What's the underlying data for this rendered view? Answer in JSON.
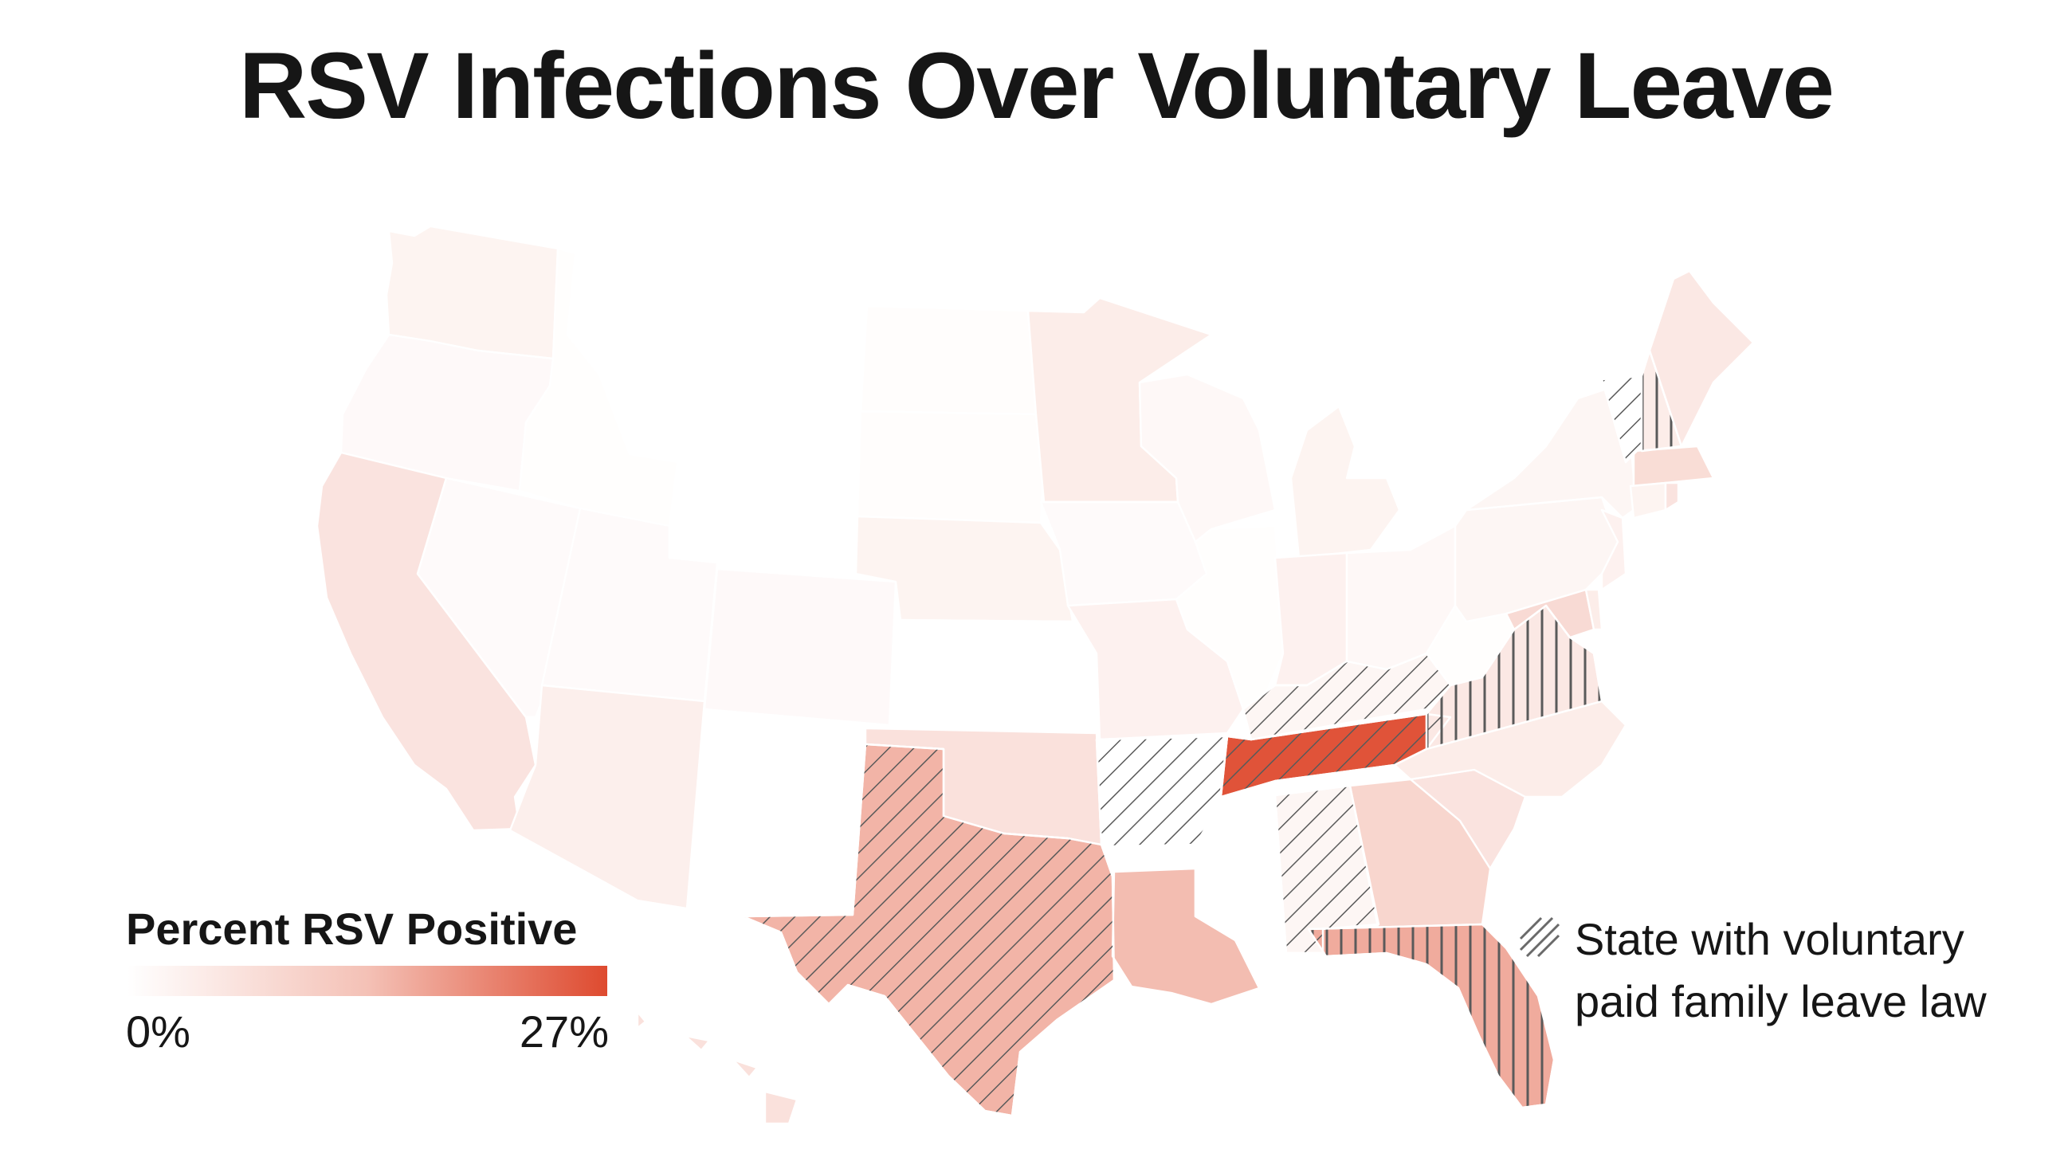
{
  "title": "RSV Infections Over Voluntary Leave",
  "legend": {
    "title": "Percent RSV Positive",
    "min_label": "0%",
    "max_label": "27%",
    "min_value": 0,
    "max_value": 27,
    "color_low": "#ffffff",
    "color_high": "#de4a2f"
  },
  "hatch_legend": {
    "line1": "State with voluntary",
    "line2": "paid family leave law"
  },
  "colors": {
    "hatch_stroke": "#5a5a5a",
    "border": "#ffffff"
  },
  "states": [
    {
      "id": "WA",
      "pct": 2.5,
      "voluntary_leave": false
    },
    {
      "id": "OR",
      "pct": 1.2,
      "voluntary_leave": false
    },
    {
      "id": "CA",
      "pct": 6.0,
      "voluntary_leave": false
    },
    {
      "id": "NV",
      "pct": 1.0,
      "voluntary_leave": false
    },
    {
      "id": "ID",
      "pct": 0.3,
      "voluntary_leave": false
    },
    {
      "id": "MT",
      "pct": 0.0,
      "voluntary_leave": false
    },
    {
      "id": "WY",
      "pct": 0.0,
      "voluntary_leave": false
    },
    {
      "id": "UT",
      "pct": 1.0,
      "voluntary_leave": false
    },
    {
      "id": "AZ",
      "pct": 3.5,
      "voluntary_leave": false
    },
    {
      "id": "CO",
      "pct": 1.2,
      "voluntary_leave": false
    },
    {
      "id": "NM",
      "pct": 0.0,
      "voluntary_leave": false
    },
    {
      "id": "ND",
      "pct": 0.5,
      "voluntary_leave": false
    },
    {
      "id": "SD",
      "pct": 0.5,
      "voluntary_leave": false
    },
    {
      "id": "NE",
      "pct": 2.5,
      "voluntary_leave": false
    },
    {
      "id": "KS",
      "pct": 0.0,
      "voluntary_leave": false
    },
    {
      "id": "OK",
      "pct": 6.5,
      "voluntary_leave": false
    },
    {
      "id": "TX",
      "pct": 15.0,
      "voluntary_leave": true
    },
    {
      "id": "MN",
      "pct": 4.0,
      "voluntary_leave": false
    },
    {
      "id": "IA",
      "pct": 1.0,
      "voluntary_leave": false
    },
    {
      "id": "MO",
      "pct": 3.0,
      "voluntary_leave": false
    },
    {
      "id": "AR",
      "pct": 0.0,
      "voluntary_leave": true
    },
    {
      "id": "LA",
      "pct": 14.0,
      "voluntary_leave": false
    },
    {
      "id": "WI",
      "pct": 1.5,
      "voluntary_leave": false
    },
    {
      "id": "IL",
      "pct": 0.3,
      "voluntary_leave": false
    },
    {
      "id": "MI",
      "pct": 2.5,
      "voluntary_leave": false
    },
    {
      "id": "IN",
      "pct": 3.0,
      "voluntary_leave": false
    },
    {
      "id": "OH",
      "pct": 1.5,
      "voluntary_leave": false
    },
    {
      "id": "KY",
      "pct": 2.0,
      "voluntary_leave": true
    },
    {
      "id": "TN",
      "pct": 26.0,
      "voluntary_leave": true
    },
    {
      "id": "MS",
      "pct": 0.0,
      "voluntary_leave": false
    },
    {
      "id": "AL",
      "pct": 2.0,
      "voluntary_leave": true
    },
    {
      "id": "GA",
      "pct": 9.0,
      "voluntary_leave": false
    },
    {
      "id": "FL",
      "pct": 16.0,
      "voluntary_leave": true
    },
    {
      "id": "SC",
      "pct": 6.0,
      "voluntary_leave": false
    },
    {
      "id": "NC",
      "pct": 4.0,
      "voluntary_leave": false
    },
    {
      "id": "VA",
      "pct": 5.0,
      "voluntary_leave": true
    },
    {
      "id": "WV",
      "pct": 0.3,
      "voluntary_leave": false
    },
    {
      "id": "PA",
      "pct": 2.0,
      "voluntary_leave": false
    },
    {
      "id": "NY",
      "pct": 2.0,
      "voluntary_leave": false
    },
    {
      "id": "VT",
      "pct": 0.0,
      "voluntary_leave": true
    },
    {
      "id": "NH",
      "pct": 4.0,
      "voluntary_leave": true
    },
    {
      "id": "ME",
      "pct": 5.0,
      "voluntary_leave": false
    },
    {
      "id": "MA",
      "pct": 7.5,
      "voluntary_leave": false
    },
    {
      "id": "CT",
      "pct": 2.5,
      "voluntary_leave": false
    },
    {
      "id": "RI",
      "pct": 6.0,
      "voluntary_leave": false
    },
    {
      "id": "NJ",
      "pct": 3.0,
      "voluntary_leave": false
    },
    {
      "id": "DE",
      "pct": 4.0,
      "voluntary_leave": false
    },
    {
      "id": "MD",
      "pct": 8.0,
      "voluntary_leave": false
    },
    {
      "id": "AK",
      "pct": 0.0,
      "voluntary_leave": false
    },
    {
      "id": "HI",
      "pct": 6.5,
      "voluntary_leave": false
    }
  ]
}
